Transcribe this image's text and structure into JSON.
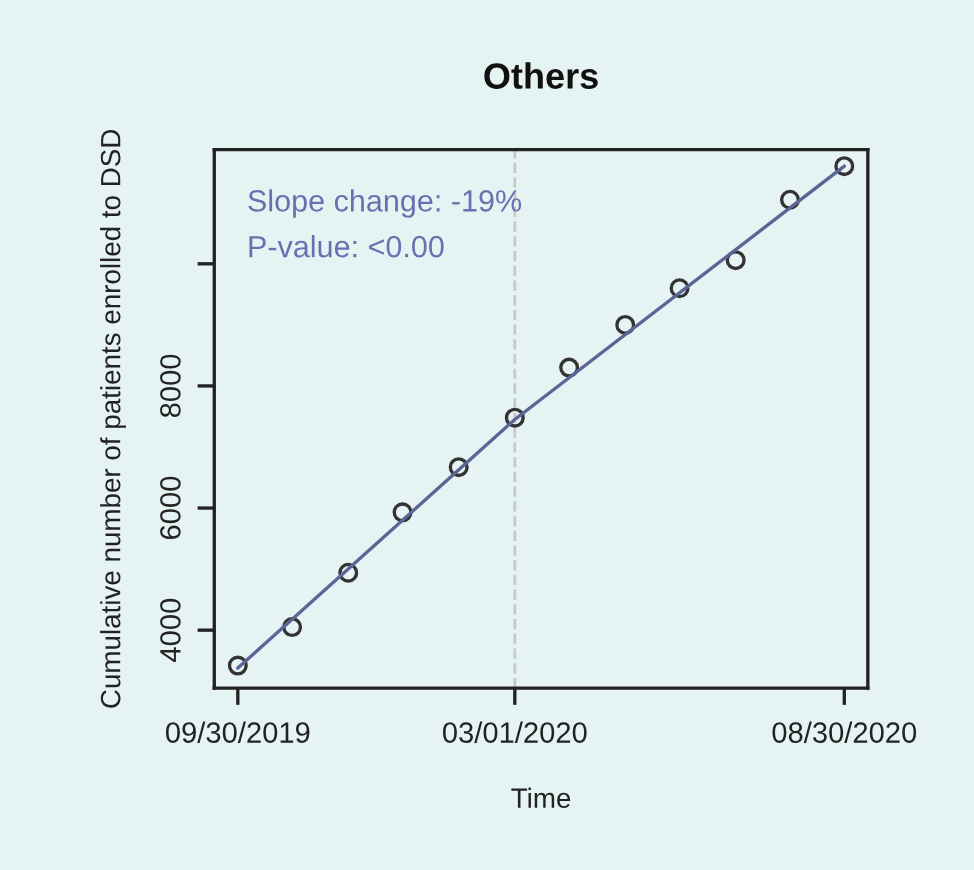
{
  "chart_data": {
    "type": "line",
    "title": "Others",
    "xlabel": "Time",
    "ylabel": "Cumulative number of patients enrolled to DSD",
    "series": [
      {
        "type": "scatter",
        "marker": "circle",
        "color": "#333333",
        "x": [
          "2019-09-30",
          "2019-10-30",
          "2019-11-30",
          "2019-12-30",
          "2020-01-30",
          "2020-03-01",
          "2020-03-31",
          "2020-05-01",
          "2020-05-31",
          "2020-07-01",
          "2020-07-31",
          "2020-08-30"
        ],
        "values": [
          3420,
          4050,
          4940,
          5930,
          6670,
          7480,
          8300,
          9000,
          9600,
          10060,
          11050,
          11600
        ]
      },
      {
        "color": "#5b6596",
        "x": [
          "2019-09-30",
          "2020-03-01",
          "2020-08-30"
        ],
        "values": [
          3380,
          7450,
          11600
        ]
      }
    ],
    "line_style": "solid",
    "xlim": [
      "2019-09-17",
      "2020-09-12"
    ],
    "xticks": [
      {
        "value": "2019-09-30",
        "label": "09/30/2019"
      },
      {
        "value": "2020-03-01",
        "label": "03/01/2020"
      },
      {
        "value": "2020-08-30",
        "label": "08/30/2020"
      }
    ],
    "ylim": [
      3050,
      11870
    ],
    "yticks": [
      4000,
      6000,
      8000,
      {
        "value": 10000,
        "label": null
      }
    ],
    "ref_lines": [
      {
        "axis": "x",
        "value": "2020-03-01",
        "color": "#c8c8c8",
        "line_style": "dashed"
      }
    ],
    "annotations": [
      "Slope change: -19%",
      "P-value: <0.00"
    ],
    "grid": false,
    "legend": false
  }
}
